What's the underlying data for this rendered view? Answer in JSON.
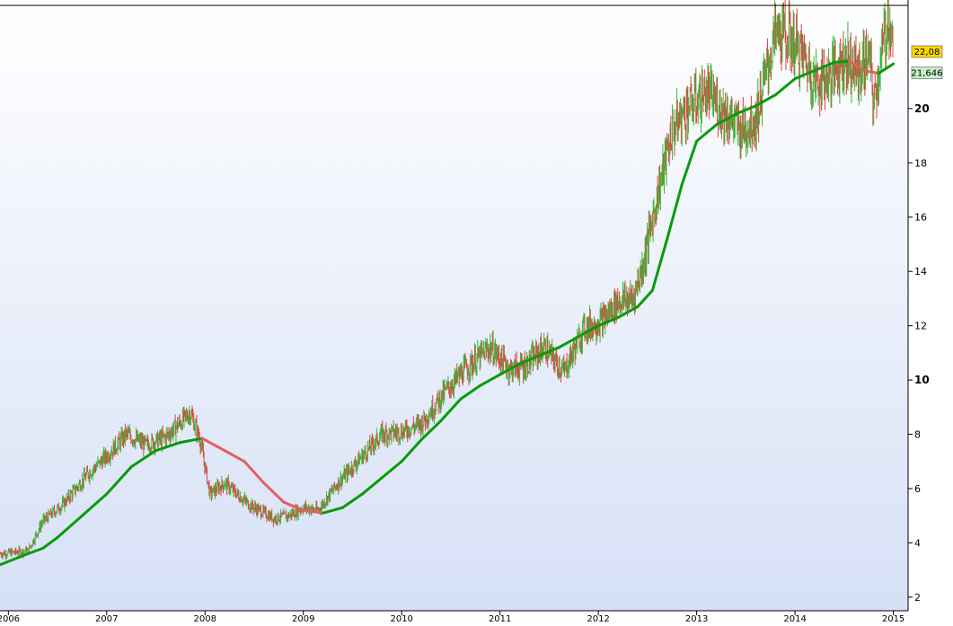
{
  "chart_data": {
    "type": "candlestick",
    "xlim": [
      2005.915,
      2015.15
    ],
    "ylim": [
      1.5,
      23.8
    ],
    "x_ticks": [
      {
        "label": "2006",
        "x": 2006.0
      },
      {
        "label": "2007",
        "x": 2007.0
      },
      {
        "label": "2008",
        "x": 2008.0
      },
      {
        "label": "2009",
        "x": 2009.0
      },
      {
        "label": "2010",
        "x": 2010.0
      },
      {
        "label": "2011",
        "x": 2011.0
      },
      {
        "label": "2012",
        "x": 2012.0
      },
      {
        "label": "2013",
        "x": 2013.0
      },
      {
        "label": "2014",
        "x": 2014.0
      },
      {
        "label": "2015",
        "x": 2015.0
      }
    ],
    "y_ticks": [
      {
        "label": "2",
        "value": 2,
        "major": false
      },
      {
        "label": "4",
        "value": 4,
        "major": false
      },
      {
        "label": "6",
        "value": 6,
        "major": false
      },
      {
        "label": "8",
        "value": 8,
        "major": false
      },
      {
        "label": "10",
        "value": 10,
        "major": true
      },
      {
        "label": "12",
        "value": 12,
        "major": false
      },
      {
        "label": "14",
        "value": 14,
        "major": false
      },
      {
        "label": "16",
        "value": 16,
        "major": false
      },
      {
        "label": "18",
        "value": 18,
        "major": false
      },
      {
        "label": "20",
        "value": 20,
        "major": true
      }
    ],
    "price_path": [
      [
        2005.92,
        3.6
      ],
      [
        2006.2,
        3.7
      ],
      [
        2006.35,
        4.8
      ],
      [
        2006.55,
        5.4
      ],
      [
        2006.8,
        6.5
      ],
      [
        2007.0,
        7.2
      ],
      [
        2007.2,
        8.0
      ],
      [
        2007.4,
        7.6
      ],
      [
        2007.6,
        7.9
      ],
      [
        2007.85,
        8.8
      ],
      [
        2007.95,
        7.8
      ],
      [
        2008.05,
        5.8
      ],
      [
        2008.2,
        6.2
      ],
      [
        2008.45,
        5.4
      ],
      [
        2008.7,
        4.9
      ],
      [
        2008.85,
        5.0
      ],
      [
        2009.0,
        5.3
      ],
      [
        2009.15,
        5.2
      ],
      [
        2009.35,
        6.2
      ],
      [
        2009.6,
        7.2
      ],
      [
        2009.8,
        8.0
      ],
      [
        2010.0,
        8.1
      ],
      [
        2010.2,
        8.4
      ],
      [
        2010.45,
        9.6
      ],
      [
        2010.65,
        10.4
      ],
      [
        2010.9,
        11.2
      ],
      [
        2011.1,
        10.4
      ],
      [
        2011.25,
        10.5
      ],
      [
        2011.45,
        11.2
      ],
      [
        2011.65,
        10.3
      ],
      [
        2011.85,
        11.9
      ],
      [
        2012.05,
        12.2
      ],
      [
        2012.2,
        12.9
      ],
      [
        2012.35,
        13.0
      ],
      [
        2012.45,
        14.2
      ],
      [
        2012.6,
        16.8
      ],
      [
        2012.75,
        19.2
      ],
      [
        2012.9,
        20.0
      ],
      [
        2013.1,
        20.6
      ],
      [
        2013.3,
        19.8
      ],
      [
        2013.45,
        19.2
      ],
      [
        2013.6,
        19.6
      ],
      [
        2013.7,
        21.2
      ],
      [
        2013.8,
        22.8
      ],
      [
        2013.95,
        22.6
      ],
      [
        2014.1,
        21.8
      ],
      [
        2014.2,
        21.0
      ],
      [
        2014.35,
        21.2
      ],
      [
        2014.5,
        21.9
      ],
      [
        2014.65,
        21.3
      ],
      [
        2014.75,
        22.0
      ],
      [
        2014.8,
        20.2
      ],
      [
        2014.9,
        22.4
      ],
      [
        2014.95,
        23.4
      ],
      [
        2015.0,
        22.08
      ]
    ],
    "moving_average": [
      [
        2005.92,
        3.2
      ],
      [
        2006.2,
        3.6
      ],
      [
        2006.35,
        3.8
      ],
      [
        2006.5,
        4.2
      ],
      [
        2006.75,
        5.0
      ],
      [
        2007.0,
        5.8
      ],
      [
        2007.25,
        6.8
      ],
      [
        2007.5,
        7.4
      ],
      [
        2007.75,
        7.7
      ],
      [
        2007.97,
        7.85
      ],
      [
        2008.2,
        7.4
      ],
      [
        2008.4,
        7.0
      ],
      [
        2008.6,
        6.2
      ],
      [
        2008.8,
        5.5
      ],
      [
        2009.0,
        5.2
      ],
      [
        2009.2,
        5.1
      ],
      [
        2009.4,
        5.3
      ],
      [
        2009.6,
        5.8
      ],
      [
        2009.8,
        6.4
      ],
      [
        2010.0,
        7.0
      ],
      [
        2010.2,
        7.8
      ],
      [
        2010.4,
        8.5
      ],
      [
        2010.6,
        9.3
      ],
      [
        2010.8,
        9.8
      ],
      [
        2011.0,
        10.2
      ],
      [
        2011.2,
        10.6
      ],
      [
        2011.4,
        10.9
      ],
      [
        2011.6,
        11.2
      ],
      [
        2011.8,
        11.6
      ],
      [
        2012.0,
        12.0
      ],
      [
        2012.2,
        12.3
      ],
      [
        2012.4,
        12.7
      ],
      [
        2012.55,
        13.3
      ],
      [
        2012.7,
        15.2
      ],
      [
        2012.85,
        17.2
      ],
      [
        2013.0,
        18.8
      ],
      [
        2013.2,
        19.4
      ],
      [
        2013.4,
        19.8
      ],
      [
        2013.6,
        20.1
      ],
      [
        2013.8,
        20.5
      ],
      [
        2014.0,
        21.1
      ],
      [
        2014.2,
        21.4
      ],
      [
        2014.4,
        21.7
      ],
      [
        2014.55,
        21.75
      ],
      [
        2014.7,
        21.4
      ],
      [
        2014.85,
        21.3
      ],
      [
        2015.0,
        21.646
      ]
    ],
    "ma_declining_segments": [
      [
        2007.97,
        2009.2
      ],
      [
        2014.55,
        2014.85
      ]
    ],
    "last_price": "22,08",
    "ma_value": "21,646"
  },
  "colors": {
    "background_top": "#ffffff",
    "background_bottom": "#d6e0f6",
    "up": "#33bb33",
    "down": "#dd4444",
    "ma_rising": "#0a9a0a",
    "ma_falling": "#e06060",
    "axis_line": "#000000",
    "badge_price_fill": "#ffd700",
    "badge_ma_fill": "#c8f0c8"
  }
}
